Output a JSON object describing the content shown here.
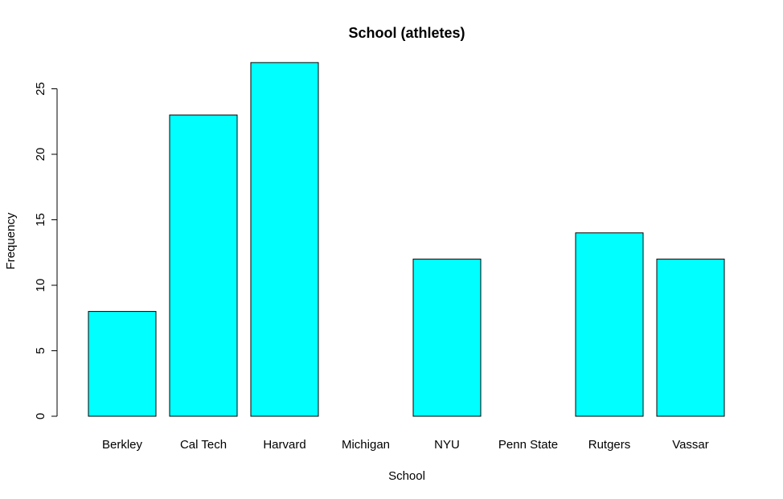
{
  "chart_data": {
    "type": "bar",
    "title": "School (athletes)",
    "xlabel": "School",
    "ylabel": "Frequency",
    "categories": [
      "Berkley",
      "Cal Tech",
      "Harvard",
      "Michigan",
      "NYU",
      "Penn State",
      "Rutgers",
      "Vassar"
    ],
    "values": [
      8,
      23,
      27,
      0,
      12,
      0,
      14,
      12
    ],
    "ylim": [
      0,
      27
    ],
    "yticks": [
      0,
      5,
      10,
      15,
      20,
      25
    ],
    "grid": false,
    "legend": "none",
    "bar_color": "#00ffff",
    "border_color": "#000000"
  }
}
